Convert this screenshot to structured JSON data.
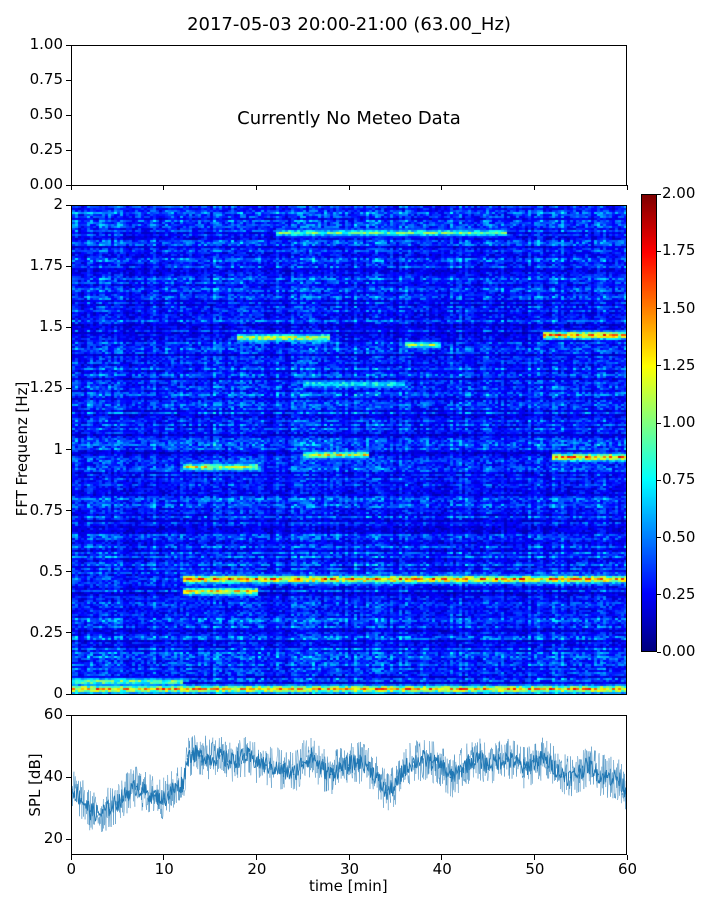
{
  "chart_data": [
    {
      "panel": "meteo",
      "type": "line",
      "title": "2017-05-03 20:00-21:00 (63.00_Hz)",
      "annotation": "Currently No Meteo Data",
      "ylim": [
        0,
        1
      ],
      "yticks": [
        "0.00",
        "0.25",
        "0.50",
        "0.75",
        "1.00"
      ],
      "series": []
    },
    {
      "panel": "spectrogram",
      "type": "heatmap",
      "ylabel": "FFT Frequenz [Hz]",
      "ylim": [
        0,
        2
      ],
      "xlim": [
        0,
        60
      ],
      "yticks": [
        "0",
        "0.25",
        "0.5",
        "0.75",
        "1",
        "1.25",
        "1.5",
        "1.75",
        "2"
      ],
      "colorbar": {
        "colormap": "jet",
        "range": [
          0,
          2
        ],
        "ticks": [
          "0.00",
          "0.25",
          "0.50",
          "0.75",
          "1.00",
          "1.25",
          "1.50",
          "1.75",
          "2.00"
        ]
      },
      "background_level": 0.3,
      "bands": [
        {
          "freq": 0.02,
          "t_start": 0,
          "t_end": 60,
          "level": 1.5
        },
        {
          "freq": 0.05,
          "t_start": 0,
          "t_end": 12,
          "level": 1.1
        },
        {
          "freq": 0.47,
          "t_start": 12,
          "t_end": 60,
          "level": 1.6
        },
        {
          "freq": 0.42,
          "t_start": 12,
          "t_end": 20,
          "level": 1.4
        },
        {
          "freq": 0.93,
          "t_start": 12,
          "t_end": 20,
          "level": 1.3
        },
        {
          "freq": 0.98,
          "t_start": 25,
          "t_end": 32,
          "level": 1.3
        },
        {
          "freq": 0.97,
          "t_start": 52,
          "t_end": 60,
          "level": 1.6
        },
        {
          "freq": 1.46,
          "t_start": 18,
          "t_end": 28,
          "level": 1.3
        },
        {
          "freq": 1.47,
          "t_start": 51,
          "t_end": 60,
          "level": 1.6
        },
        {
          "freq": 1.43,
          "t_start": 36,
          "t_end": 40,
          "level": 1.1
        },
        {
          "freq": 1.27,
          "t_start": 25,
          "t_end": 36,
          "level": 0.9
        },
        {
          "freq": 1.89,
          "t_start": 22,
          "t_end": 47,
          "level": 1.0
        }
      ]
    },
    {
      "panel": "spl",
      "type": "line",
      "ylabel": "SPL [dB]",
      "xlabel": "time [min]",
      "xlim": [
        0,
        60
      ],
      "ylim": [
        15,
        60
      ],
      "yticks": [
        "20",
        "40",
        "60"
      ],
      "xticks": [
        "0",
        "10",
        "20",
        "30",
        "40",
        "50",
        "60"
      ],
      "series_color": "#1f77b4",
      "series": [
        {
          "x": [
            0,
            1,
            2,
            3,
            4,
            5,
            6,
            7,
            8,
            9,
            10,
            11,
            12,
            12.5,
            13,
            14,
            15,
            16,
            17,
            18,
            19,
            20,
            21,
            22,
            23,
            24,
            25,
            26,
            27,
            28,
            29,
            30,
            31,
            32,
            33,
            34,
            35,
            36,
            37,
            38,
            39,
            40,
            41,
            42,
            43,
            44,
            45,
            46,
            47,
            48,
            49,
            50,
            51,
            52,
            53,
            54,
            55,
            56,
            57,
            58,
            59,
            60
          ],
          "y": [
            36,
            33,
            29,
            28,
            30,
            32,
            35,
            37,
            35,
            34,
            33,
            36,
            38,
            46,
            48,
            47,
            46,
            47,
            45,
            46,
            47,
            45,
            44,
            43,
            42,
            41,
            45,
            47,
            43,
            41,
            43,
            44,
            45,
            44,
            40,
            35,
            37,
            43,
            45,
            46,
            45,
            44,
            40,
            42,
            45,
            46,
            44,
            45,
            46,
            45,
            43,
            45,
            46,
            44,
            41,
            40,
            42,
            44,
            41,
            40,
            40,
            36
          ]
        }
      ]
    }
  ]
}
